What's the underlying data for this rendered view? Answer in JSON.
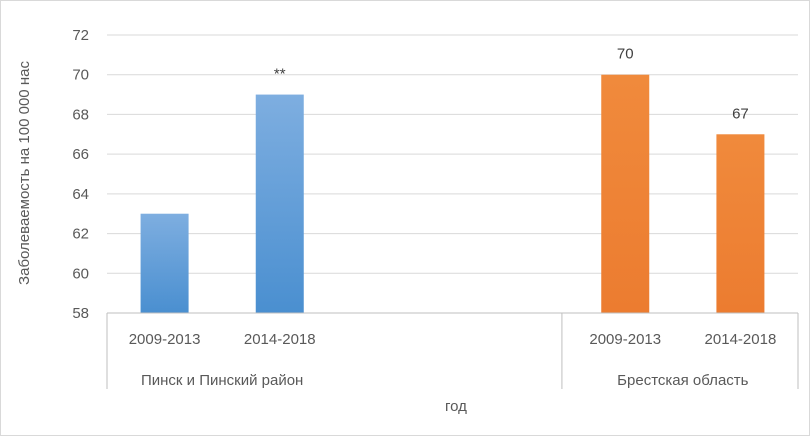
{
  "chart_data": {
    "type": "bar",
    "title": "",
    "ylabel": "Заболеваемость на 100 000 нас",
    "xlabel": "год",
    "ylim": [
      58,
      72
    ],
    "yticks": [
      58,
      60,
      62,
      64,
      66,
      68,
      70,
      72
    ],
    "grid": true,
    "legend": "none",
    "groups": [
      {
        "name": "Пинск и Пинский район",
        "color": "#5B9BD5",
        "categories": [
          "2009-2013",
          "2014-2018"
        ],
        "values": [
          63,
          69
        ],
        "data_labels": [
          "",
          "**"
        ]
      },
      {
        "name": "Брестская область",
        "color": "#ED7D31",
        "categories": [
          "2009-2013",
          "2014-2018"
        ],
        "values": [
          70,
          67
        ],
        "data_labels": [
          "70",
          "67"
        ]
      }
    ]
  }
}
